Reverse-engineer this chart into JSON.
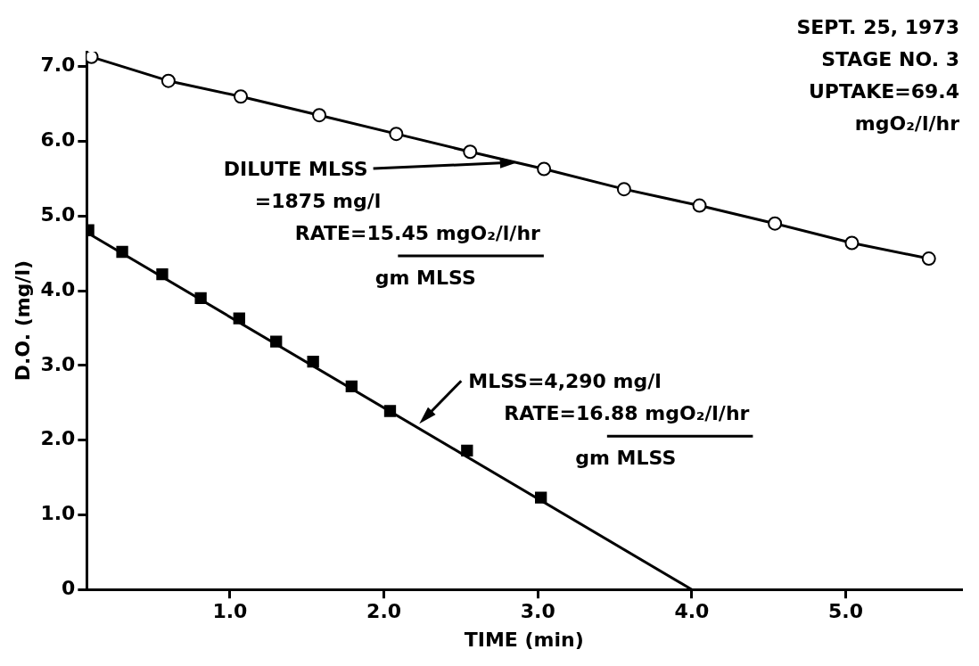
{
  "chart_data": {
    "type": "line",
    "xlabel": "TIME (min)",
    "ylabel": "D.O. (mg/l)",
    "xlim": [
      0.07,
      5.75
    ],
    "ylim": [
      0,
      7.2
    ],
    "xticks": [
      {
        "value": 1,
        "label": "1.0"
      },
      {
        "value": 2,
        "label": "2.0"
      },
      {
        "value": 3,
        "label": "3.0"
      },
      {
        "value": 4,
        "label": "4.0"
      },
      {
        "value": 5,
        "label": "5.0"
      }
    ],
    "yticks": [
      0,
      {
        "value": 1,
        "label": "1.0"
      },
      {
        "value": 2,
        "label": "2.0"
      },
      {
        "value": 3,
        "label": "3.0"
      },
      {
        "value": 4,
        "label": "4.0"
      },
      {
        "value": 5,
        "label": "5.0"
      },
      {
        "value": 6,
        "label": "6.0"
      },
      {
        "value": 7,
        "label": "7.0"
      }
    ],
    "grid": false,
    "legend": false,
    "series": [
      {
        "marker": "circle",
        "color": "#000000",
        "x": [
          0.1,
          0.6,
          1.07,
          1.58,
          2.08,
          2.56,
          3.04,
          3.56,
          4.05,
          4.54,
          5.04,
          5.54
        ],
        "values": [
          7.13,
          6.81,
          6.6,
          6.35,
          6.1,
          5.86,
          5.63,
          5.36,
          5.14,
          4.9,
          4.64,
          4.43
        ]
      },
      {
        "type": "scatter",
        "marker": "square",
        "color": "#000000",
        "x": [
          0.08,
          0.3,
          0.56,
          0.81,
          1.06,
          1.3,
          1.54,
          1.79,
          2.04,
          2.54,
          3.02
        ],
        "values": [
          4.81,
          4.52,
          4.22,
          3.9,
          3.63,
          3.32,
          3.05,
          2.72,
          2.39,
          1.86,
          1.23
        ]
      },
      {
        "marker": "none",
        "color": "#000000",
        "x": [
          0.07,
          4.0
        ],
        "values": [
          4.78,
          0
        ]
      }
    ],
    "annotations": [
      {
        "text": "DILUTE MLSS\n=1875 mg/l\nRATE=15.45 mgO₂/l/hr\ngm MLSS",
        "x": 2.87,
        "y": 5.72
      },
      {
        "text": "MLSS=4,290 mg/l\nRATE=16.88 mgO₂/l/hr\ngm MLSS",
        "x": 2.23,
        "y": 2.22
      },
      "SEPT. 25, 1973\nSTAGE NO. 3\nUPTAKE=69.4\nmgO₂/l/hr"
    ]
  }
}
